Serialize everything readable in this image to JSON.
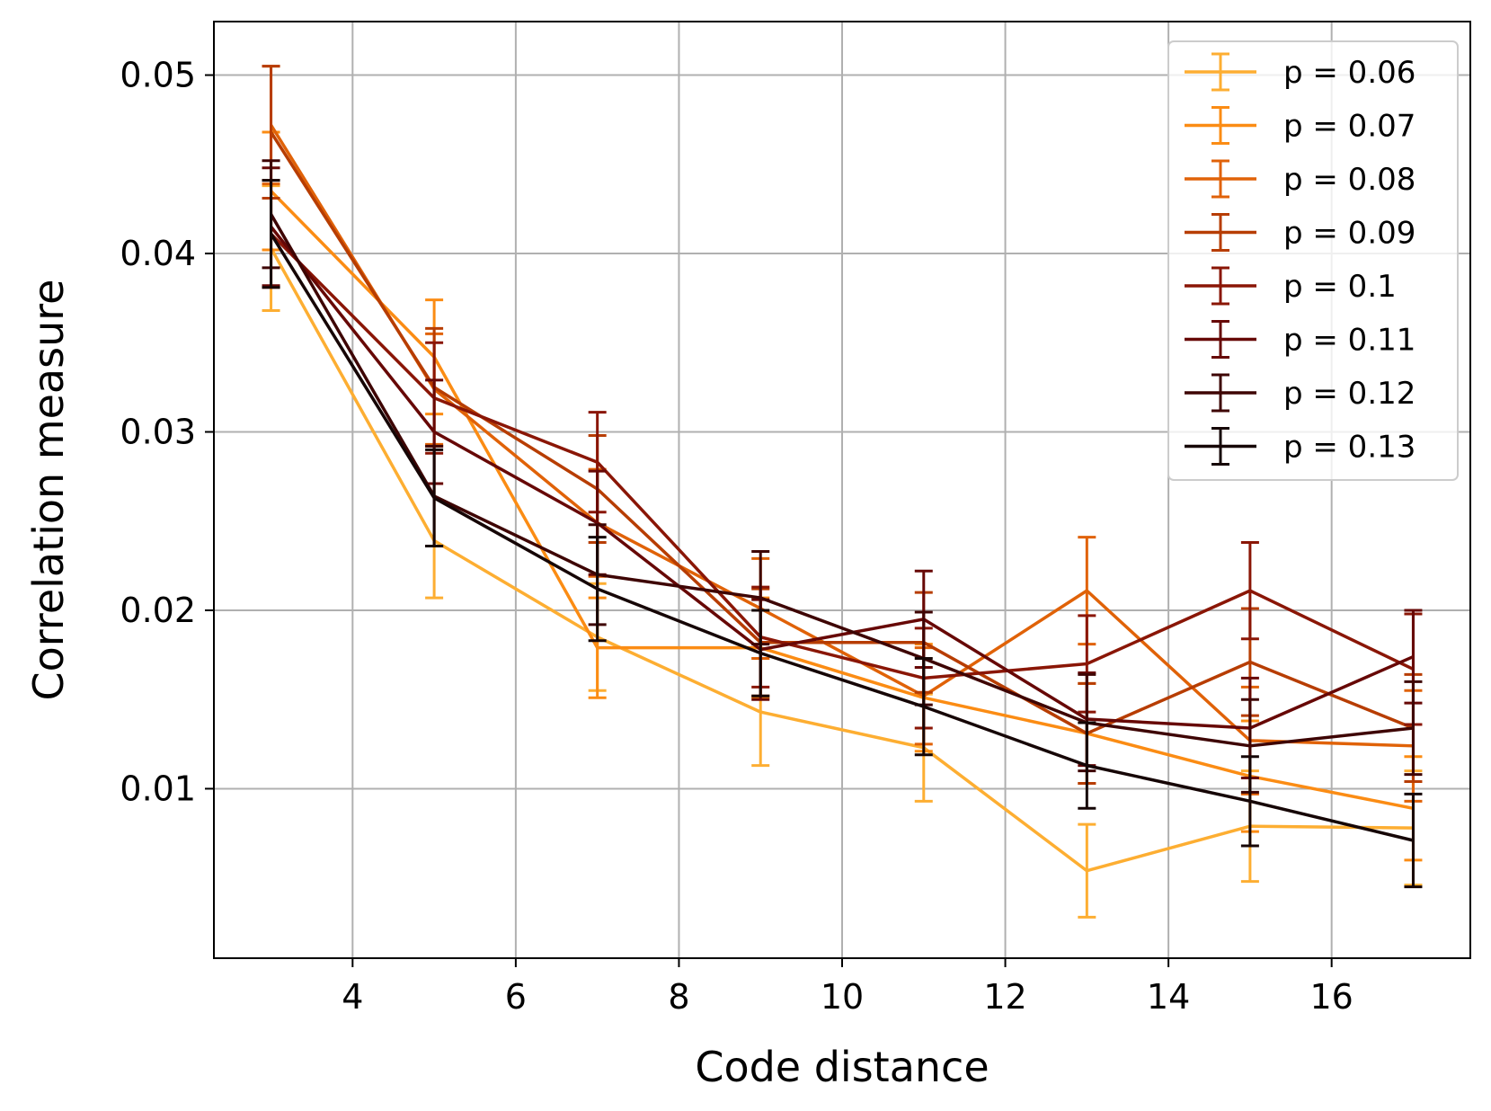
{
  "chart_data": {
    "type": "line",
    "title": "",
    "xlabel": "Code distance",
    "ylabel": "Correlation measure",
    "xlim": [
      2.3,
      17.7
    ],
    "ylim": [
      0.0005,
      0.053
    ],
    "xticks": [
      4,
      6,
      8,
      10,
      12,
      14,
      16
    ],
    "xtick_labels": [
      "4",
      "6",
      "8",
      "10",
      "12",
      "14",
      "16"
    ],
    "yticks": [
      0.01,
      0.02,
      0.03,
      0.04,
      0.05
    ],
    "ytick_labels": [
      "0.01",
      "0.02",
      "0.03",
      "0.04",
      "0.05"
    ],
    "grid": true,
    "legend_position": "top-right",
    "x": [
      3,
      5,
      7,
      9,
      11,
      13,
      15,
      17
    ],
    "series": [
      {
        "name": "p = 0.06",
        "color": "#fdae32",
        "values": [
          0.0403,
          0.0239,
          0.0185,
          0.0143,
          0.0123,
          0.0054,
          0.0079,
          0.0078
        ],
        "errors": [
          0.0035,
          0.0032,
          0.003,
          0.003,
          0.003,
          0.0026,
          0.0031,
          0.0032
        ]
      },
      {
        "name": "p = 0.07",
        "color": "#fb8c14",
        "values": [
          0.0435,
          0.0342,
          0.0179,
          0.0179,
          0.0151,
          0.0131,
          0.0107,
          0.0089
        ],
        "errors": [
          0.0033,
          0.0032,
          0.0028,
          0.0028,
          0.003,
          0.0028,
          0.0031,
          0.0029
        ]
      },
      {
        "name": "p = 0.08",
        "color": "#e06208",
        "values": [
          0.0472,
          0.0324,
          0.0249,
          0.0201,
          0.0152,
          0.0211,
          0.0127,
          0.0124
        ],
        "errors": [
          0.0033,
          0.0031,
          0.003,
          0.0028,
          0.0027,
          0.003,
          0.003,
          0.0031
        ]
      },
      {
        "name": "p = 0.09",
        "color": "#b73d02",
        "values": [
          0.0468,
          0.0325,
          0.0268,
          0.0182,
          0.0182,
          0.0131,
          0.0171,
          0.0134
        ],
        "errors": [
          0.0037,
          0.0033,
          0.003,
          0.003,
          0.0028,
          0.0028,
          0.003,
          0.003
        ]
      },
      {
        "name": "p = 0.1",
        "color": "#8a1606",
        "values": [
          0.0411,
          0.0319,
          0.0283,
          0.0185,
          0.0162,
          0.017,
          0.0211,
          0.0167
        ],
        "errors": [
          0.003,
          0.0031,
          0.0028,
          0.0028,
          0.0028,
          0.0027,
          0.0027,
          0.0031
        ]
      },
      {
        "name": "p = 0.11",
        "color": "#670806",
        "values": [
          0.0415,
          0.03,
          0.0249,
          0.0178,
          0.0195,
          0.0139,
          0.0134,
          0.0174
        ],
        "errors": [
          0.0033,
          0.0029,
          0.0029,
          0.0028,
          0.0027,
          0.0026,
          0.0028,
          0.0026
        ]
      },
      {
        "name": "p = 0.12",
        "color": "#3e0504",
        "values": [
          0.0422,
          0.0264,
          0.022,
          0.0207,
          0.0173,
          0.0137,
          0.0124,
          0.0134
        ],
        "errors": [
          0.003,
          0.0028,
          0.0028,
          0.0026,
          0.0026,
          0.0027,
          0.0026,
          0.0026
        ]
      },
      {
        "name": "p = 0.13",
        "color": "#160606",
        "values": [
          0.0411,
          0.0263,
          0.0212,
          0.0176,
          0.0146,
          0.0113,
          0.0093,
          0.0071
        ],
        "errors": [
          0.003,
          0.0027,
          0.0029,
          0.0024,
          0.0027,
          0.0024,
          0.0025,
          0.0026
        ]
      }
    ]
  }
}
